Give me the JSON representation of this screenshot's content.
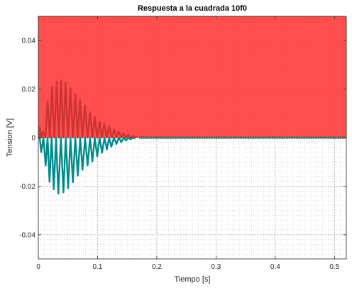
{
  "chart_data": {
    "type": "line",
    "title": "Respuesta a la cuadrada 10f0",
    "xlabel": "Tiempo [s]",
    "ylabel": "Tension [V]",
    "xlim": [
      0,
      0.52
    ],
    "ylim": [
      -0.05,
      0.05
    ],
    "xticks": [
      0,
      0.1,
      0.2,
      0.3,
      0.4,
      0.5
    ],
    "xtick_labels": [
      "0",
      "0.1",
      "0.2",
      "0.3",
      "0.4",
      "0.5"
    ],
    "yticks": [
      -0.04,
      -0.02,
      0,
      0.02,
      0.04
    ],
    "ytick_labels": [
      "-0.04",
      "-0.02",
      "0",
      "0.02",
      "0.04"
    ],
    "grid": true,
    "minor_grid": true,
    "fill_above_zero": {
      "color": "#ff4444"
    },
    "series": [
      {
        "color": "#008b8b",
        "x": [
          0.0,
          0.0048,
          0.0124,
          0.0189,
          0.0261,
          0.0338,
          0.0424,
          0.0503,
          0.0583,
          0.0666,
          0.0747,
          0.0832,
          0.0913,
          0.0994,
          0.1076,
          0.1157,
          0.1233,
          0.1319,
          0.1402,
          0.1481,
          0.1558,
          0.1635
        ],
        "y": [
          0.0,
          -0.006,
          -0.0115,
          -0.0182,
          -0.0213,
          -0.0231,
          -0.0226,
          -0.0209,
          -0.0184,
          -0.0157,
          -0.0133,
          -0.0115,
          -0.0099,
          -0.0077,
          -0.0063,
          -0.0049,
          -0.0038,
          -0.0026,
          -0.0019,
          -0.0012,
          -0.0007,
          -0.0004
        ]
      },
      {
        "color": "#cc3333",
        "x": [
          0.0,
          0.0026,
          0.0082,
          0.0157,
          0.0231,
          0.031,
          0.0384,
          0.0459,
          0.0543,
          0.0626,
          0.0703,
          0.0788,
          0.0873,
          0.0953,
          0.1034,
          0.1113,
          0.1197,
          0.128,
          0.1359,
          0.1438,
          0.1518,
          0.1597,
          0.1675
        ],
        "y": [
          0.0,
          0.0042,
          0.0026,
          0.0149,
          0.021,
          0.0231,
          0.0235,
          0.0229,
          0.0203,
          0.0178,
          0.0157,
          0.0133,
          0.0105,
          0.0085,
          0.0067,
          0.0059,
          0.0048,
          0.0034,
          0.0026,
          0.0018,
          0.0012,
          0.0007,
          0.0004
        ]
      }
    ],
    "tail_ripple": {
      "x_start": 0.17,
      "x_end": 0.52,
      "amplitude": 0.0004,
      "period": 0.0082,
      "colors": [
        "#cc3333",
        "#008b8b"
      ]
    }
  }
}
